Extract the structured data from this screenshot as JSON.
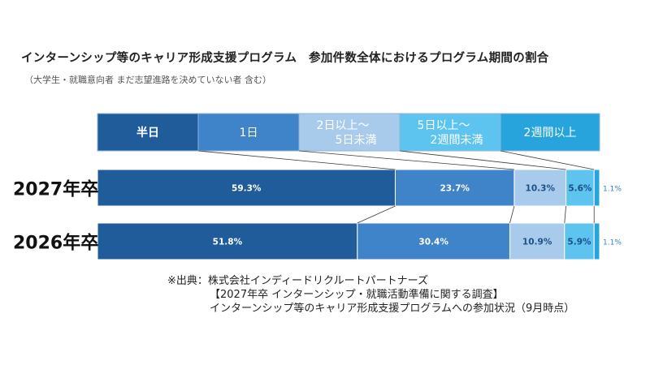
{
  "title": "インターンシップ等のキャリア形成支援プログラム　参加件数全体におけるプログラム期間の割合",
  "subtitle": "（大学生・就職意向者 まだ志望進路を決めていない者 含む）",
  "colors": {
    "half_day": "#1F5C99",
    "one_day": "#3F83C9",
    "two_to_four_days": "#A9CBEB",
    "five_days_to_two_weeks": "#5CC4EE",
    "two_weeks_plus": "#27A4DB",
    "legend_border": "#8FB3D6",
    "label_dark_text": "#1B4F86",
    "outside_label": "#2E86C1"
  },
  "chart_data": {
    "type": "bar",
    "stacked": "100%",
    "orientation": "horizontal",
    "categories": [
      "2027年卒",
      "2026年卒"
    ],
    "legend_position": "top",
    "series": [
      {
        "name": "半日",
        "values": [
          59.3,
          51.8
        ],
        "labels": [
          "59.3%",
          "51.8%"
        ],
        "label_style": "light"
      },
      {
        "name": "1日",
        "values": [
          23.7,
          30.4
        ],
        "labels": [
          "23.7%",
          "30.4%"
        ],
        "label_style": "light"
      },
      {
        "name": "2日以上～\n5日未満",
        "values": [
          10.3,
          10.9
        ],
        "labels": [
          "10.3%",
          "10.9%"
        ],
        "label_style": "dark"
      },
      {
        "name": "5日以上～\n2週間未満",
        "values": [
          5.6,
          5.9
        ],
        "labels": [
          "5.6%",
          "5.9%"
        ],
        "label_style": "dark"
      },
      {
        "name": "2週間以上",
        "values": [
          1.1,
          1.1
        ],
        "labels": [
          "1.1%",
          "1.1%"
        ],
        "label_style": "outside"
      }
    ],
    "connector_lines": true
  },
  "source": {
    "line1": "※出典：株式会社インディードリクルートパートナーズ",
    "line2": "【2027年卒 インターンシップ・就職活動準備に関する調査】",
    "line3": "インターンシップ等のキャリア形成支援プログラムへの参加状況（9月時点）"
  }
}
